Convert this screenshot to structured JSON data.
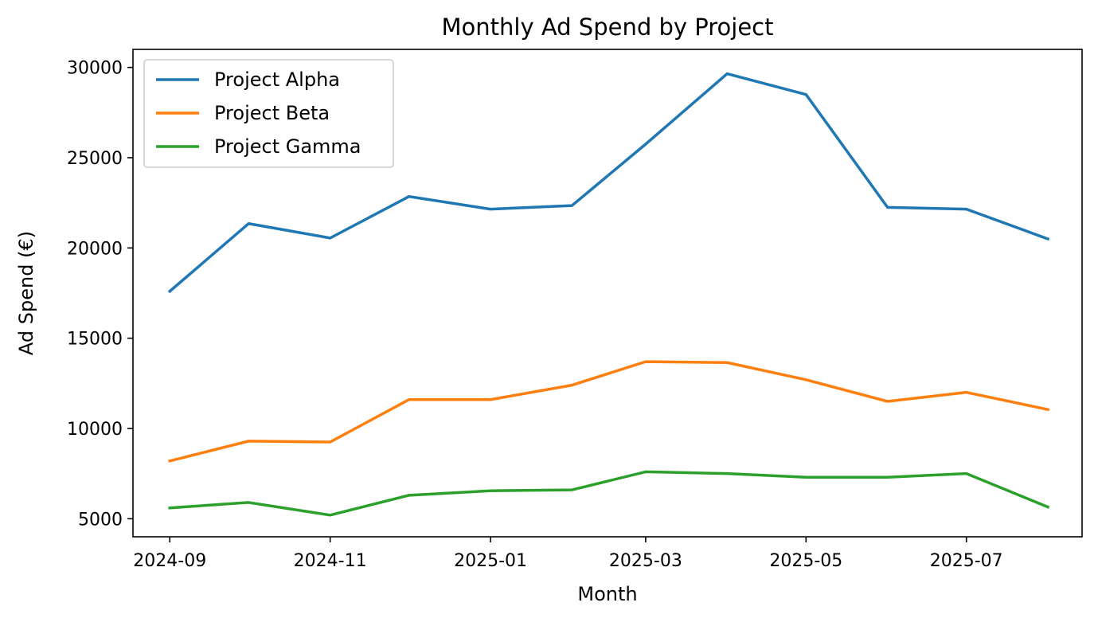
{
  "chart_data": {
    "type": "line",
    "title": "Monthly Ad Spend by Project",
    "xlabel": "Month",
    "ylabel": "Ad Spend (€)",
    "x": [
      "2024-09",
      "2024-10",
      "2024-11",
      "2024-12",
      "2025-01",
      "2025-02",
      "2025-03",
      "2025-04",
      "2025-05",
      "2025-06",
      "2025-07",
      "2025-08"
    ],
    "x_ticks": [
      "2024-09",
      "2024-11",
      "2025-01",
      "2025-03",
      "2025-05",
      "2025-07"
    ],
    "xlim": [
      "2024-08-18",
      "2025-08-14"
    ],
    "y_ticks": [
      5000,
      10000,
      15000,
      20000,
      25000,
      30000
    ],
    "ylim": [
      4000,
      31000
    ],
    "grid": false,
    "legend_position": "top-left",
    "series": [
      {
        "name": "Project Alpha",
        "color": "#1f77b4",
        "values": [
          17600,
          21350,
          20550,
          22850,
          22150,
          22350,
          25750,
          29650,
          28500,
          22250,
          22150,
          20500
        ]
      },
      {
        "name": "Project Beta",
        "color": "#ff7f0e",
        "values": [
          8200,
          9300,
          9250,
          11600,
          11600,
          12400,
          13700,
          13650,
          12700,
          11500,
          12000,
          11050
        ]
      },
      {
        "name": "Project Gamma",
        "color": "#2ca02c",
        "values": [
          5600,
          5900,
          5200,
          6300,
          6550,
          6600,
          7600,
          7500,
          7300,
          7300,
          7500,
          5650
        ]
      }
    ]
  }
}
